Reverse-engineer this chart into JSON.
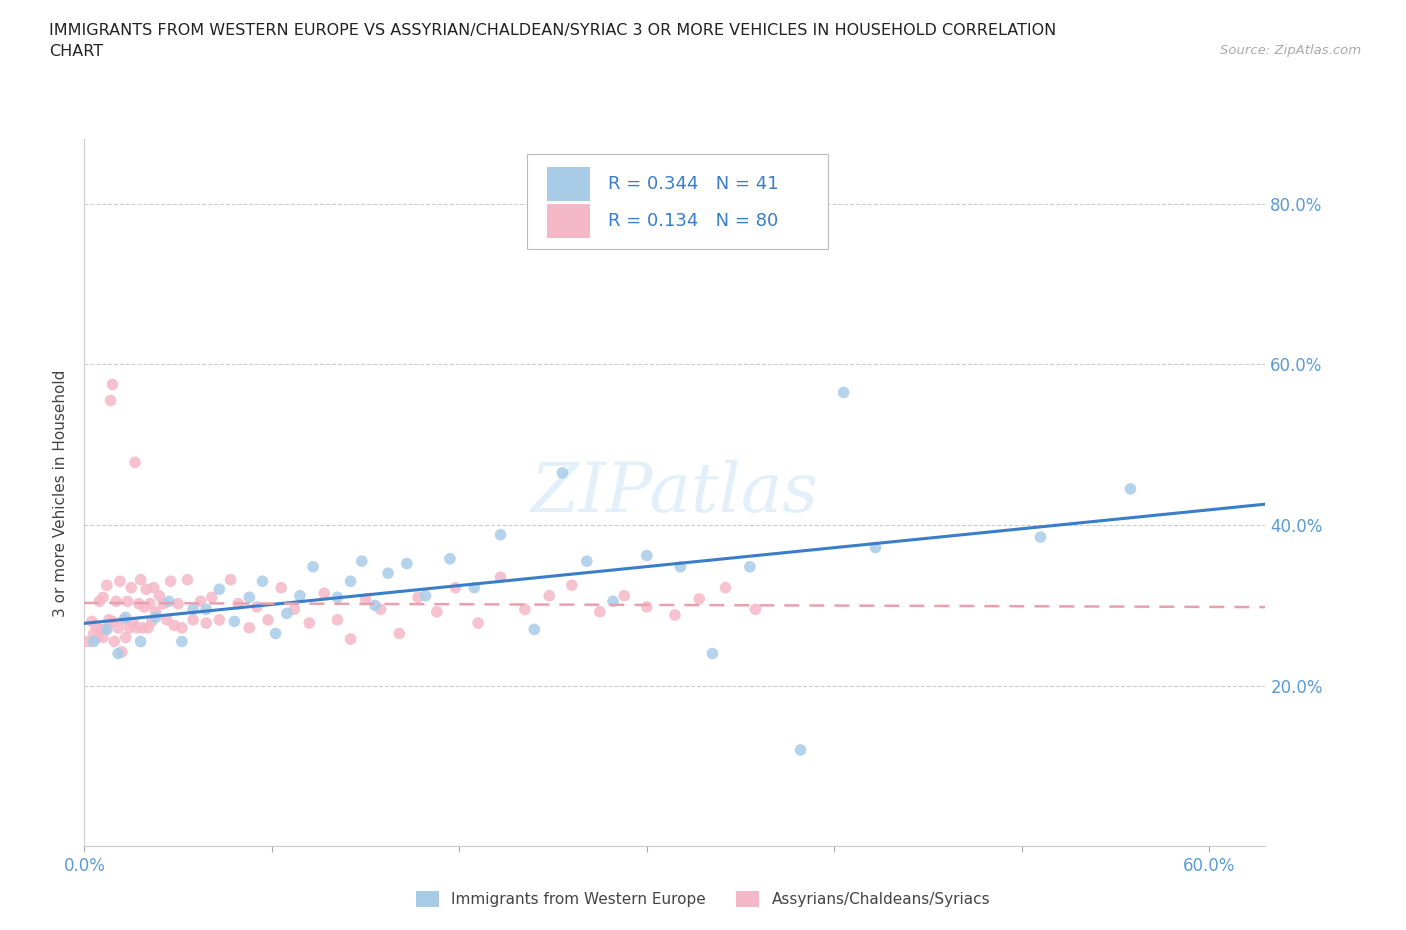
{
  "title_line1": "IMMIGRANTS FROM WESTERN EUROPE VS ASSYRIAN/CHALDEAN/SYRIAC 3 OR MORE VEHICLES IN HOUSEHOLD CORRELATION",
  "title_line2": "CHART",
  "source_text": "Source: ZipAtlas.com",
  "ylabel": "3 or more Vehicles in Household",
  "xlim": [
    0.0,
    0.63
  ],
  "ylim": [
    0.0,
    0.88
  ],
  "xticks": [
    0.0,
    0.1,
    0.2,
    0.3,
    0.4,
    0.5,
    0.6
  ],
  "yticks": [
    0.0,
    0.2,
    0.4,
    0.6,
    0.8
  ],
  "xtick_labels": [
    "0.0%",
    "",
    "",
    "",
    "",
    "",
    "60.0%"
  ],
  "ytick_labels_right": [
    "",
    "20.0%",
    "40.0%",
    "60.0%",
    "80.0%"
  ],
  "blue_color": "#a8cce8",
  "pink_color": "#f5b8c8",
  "trendline_blue": "#3a7dc9",
  "trendline_pink": "#e8a0b0",
  "R_blue": 0.344,
  "N_blue": 41,
  "R_pink": 0.134,
  "N_pink": 80,
  "grid_color": "#cccccc",
  "blue_x": [
    0.005,
    0.012,
    0.018,
    0.022,
    0.03,
    0.038,
    0.045,
    0.052,
    0.058,
    0.065,
    0.072,
    0.08,
    0.088,
    0.095,
    0.102,
    0.108,
    0.115,
    0.122,
    0.135,
    0.142,
    0.148,
    0.155,
    0.162,
    0.172,
    0.182,
    0.195,
    0.208,
    0.222,
    0.24,
    0.255,
    0.268,
    0.282,
    0.3,
    0.318,
    0.335,
    0.355,
    0.382,
    0.405,
    0.422,
    0.51,
    0.558
  ],
  "blue_y": [
    0.255,
    0.27,
    0.24,
    0.285,
    0.255,
    0.285,
    0.305,
    0.255,
    0.295,
    0.295,
    0.32,
    0.28,
    0.31,
    0.33,
    0.265,
    0.29,
    0.312,
    0.348,
    0.31,
    0.33,
    0.355,
    0.3,
    0.34,
    0.352,
    0.312,
    0.358,
    0.322,
    0.388,
    0.27,
    0.465,
    0.355,
    0.305,
    0.362,
    0.348,
    0.24,
    0.348,
    0.12,
    0.565,
    0.372,
    0.385,
    0.445
  ],
  "pink_x": [
    0.002,
    0.004,
    0.005,
    0.006,
    0.007,
    0.008,
    0.009,
    0.01,
    0.01,
    0.011,
    0.012,
    0.013,
    0.014,
    0.015,
    0.015,
    0.016,
    0.017,
    0.018,
    0.019,
    0.02,
    0.021,
    0.022,
    0.023,
    0.024,
    0.025,
    0.026,
    0.027,
    0.028,
    0.029,
    0.03,
    0.031,
    0.032,
    0.033,
    0.034,
    0.035,
    0.036,
    0.037,
    0.038,
    0.04,
    0.042,
    0.044,
    0.046,
    0.048,
    0.05,
    0.052,
    0.055,
    0.058,
    0.062,
    0.065,
    0.068,
    0.072,
    0.078,
    0.082,
    0.088,
    0.092,
    0.098,
    0.105,
    0.112,
    0.12,
    0.128,
    0.135,
    0.142,
    0.15,
    0.158,
    0.168,
    0.178,
    0.188,
    0.198,
    0.21,
    0.222,
    0.235,
    0.248,
    0.26,
    0.275,
    0.288,
    0.3,
    0.315,
    0.328,
    0.342,
    0.358
  ],
  "pink_y": [
    0.255,
    0.28,
    0.265,
    0.275,
    0.26,
    0.305,
    0.27,
    0.26,
    0.31,
    0.27,
    0.325,
    0.282,
    0.555,
    0.28,
    0.575,
    0.255,
    0.305,
    0.272,
    0.33,
    0.242,
    0.282,
    0.26,
    0.305,
    0.272,
    0.322,
    0.278,
    0.478,
    0.272,
    0.302,
    0.332,
    0.272,
    0.298,
    0.32,
    0.272,
    0.302,
    0.28,
    0.322,
    0.292,
    0.312,
    0.302,
    0.282,
    0.33,
    0.275,
    0.302,
    0.272,
    0.332,
    0.282,
    0.305,
    0.278,
    0.31,
    0.282,
    0.332,
    0.302,
    0.272,
    0.298,
    0.282,
    0.322,
    0.295,
    0.278,
    0.315,
    0.282,
    0.258,
    0.308,
    0.295,
    0.265,
    0.31,
    0.292,
    0.322,
    0.278,
    0.335,
    0.295,
    0.312,
    0.325,
    0.292,
    0.312,
    0.298,
    0.288,
    0.308,
    0.322,
    0.295
  ]
}
